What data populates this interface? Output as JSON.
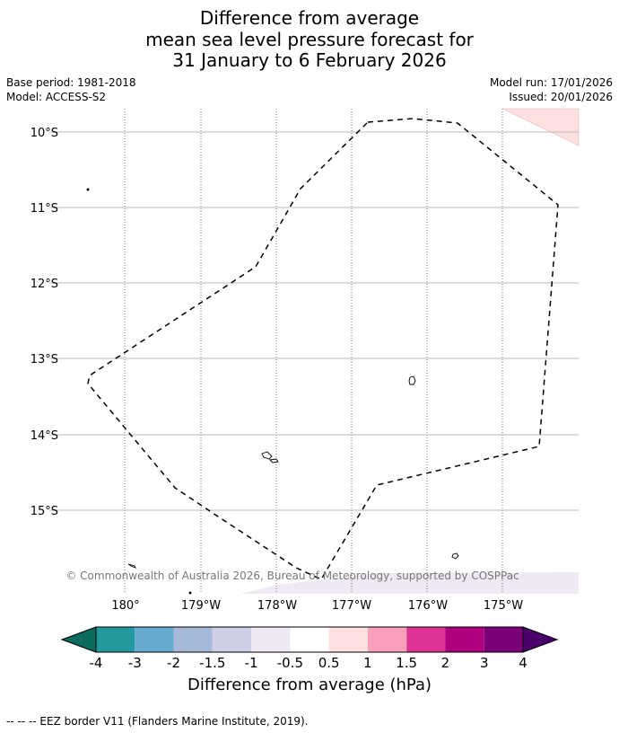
{
  "title": {
    "line1": "Difference from average",
    "line2": "mean sea level pressure forecast for",
    "line3": "31 January to 6 February 2026"
  },
  "meta": {
    "base_period": "Base period: 1981-2018",
    "model": "Model: ACCESS-S2",
    "model_run": "Model run: 17/01/2026",
    "issued": "Issued: 20/01/2026"
  },
  "map": {
    "lat_labels": [
      "10°S",
      "11°S",
      "12°S",
      "13°S",
      "14°S",
      "15°S"
    ],
    "lon_labels": [
      "180°",
      "179°W",
      "178°W",
      "177°W",
      "176°W",
      "175°W"
    ],
    "copyright": "© Commonwealth of Australia 2026, Bureau of Meteorology, supported by COSPPac"
  },
  "colorbar": {
    "tick_labels": [
      "-4",
      "-3",
      "-2",
      "-1.5",
      "-1",
      "-0.5",
      "0.5",
      "1",
      "1.5",
      "2",
      "3",
      "4"
    ],
    "colors": [
      "#0b6b5c",
      "#21999d",
      "#68a9d0",
      "#a6b9da",
      "#cfd0e6",
      "#efe9f3",
      "#ffffff",
      "#fde0df",
      "#f89fbc",
      "#dd3497",
      "#ae017e",
      "#7a0177",
      "#49006a"
    ],
    "label": "Difference from average (hPa)"
  },
  "footer": {
    "legend": "--  --  -- EEZ border V11 (Flanders Marine Institute, 2019)."
  }
}
